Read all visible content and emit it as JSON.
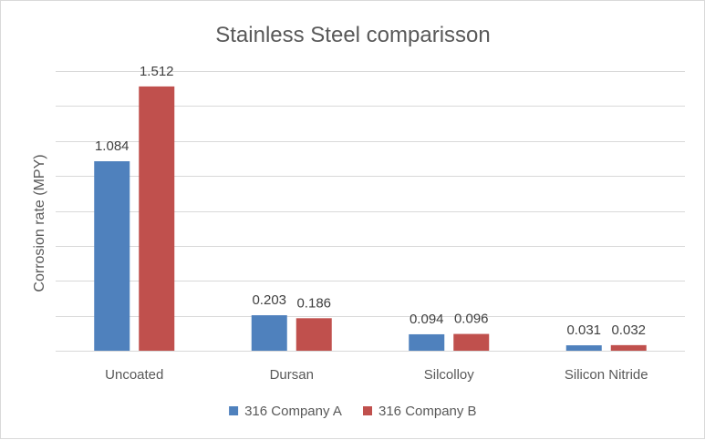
{
  "chart_data": {
    "type": "bar",
    "title": "Stainless Steel comparisson",
    "xlabel": "",
    "ylabel": "Corrosion rate (MPY)",
    "ylim": [
      0,
      1.6
    ],
    "y_tick_step": 0.2,
    "y_tick_labels_shown": false,
    "grid": true,
    "legend_position": "bottom",
    "categories": [
      "Uncoated",
      "Dursan",
      "Silcolloy",
      "Silicon Nitride"
    ],
    "series": [
      {
        "name": "316 Company A",
        "color": "#4f81bd",
        "values": [
          1.084,
          0.203,
          0.094,
          0.031
        ],
        "labels": [
          "1.084",
          "0.203",
          "0.094",
          "0.031"
        ]
      },
      {
        "name": "316 Company B",
        "color": "#c0504d",
        "values": [
          1.512,
          0.186,
          0.096,
          0.032
        ],
        "labels": [
          "1.512",
          "0.186",
          "0.096",
          "0.032"
        ]
      }
    ]
  }
}
